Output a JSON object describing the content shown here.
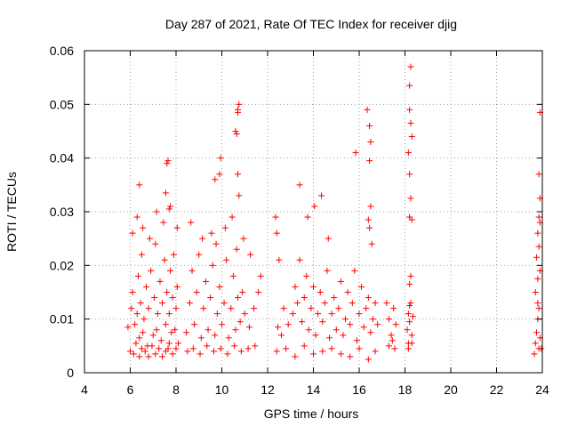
{
  "chart_data": {
    "type": "scatter",
    "title": "Day 287 of 2021, Rate Of TEC Index for receiver djig",
    "xlabel": "GPS time / hours",
    "ylabel": "ROTI / TECUs",
    "xlim": [
      4,
      24
    ],
    "ylim": [
      0,
      0.06
    ],
    "xticks": [
      "4",
      "6",
      "8",
      "10",
      "12",
      "14",
      "16",
      "18",
      "20",
      "22",
      "24"
    ],
    "yticks": [
      "0",
      "0.01",
      "0.02",
      "0.03",
      "0.04",
      "0.05",
      "0.06"
    ],
    "grid": true,
    "marker": "plus",
    "color": "#ff0000",
    "series": [
      {
        "name": "ROTI",
        "x": [
          5.9,
          6.05,
          6.1,
          6.2,
          6.3,
          6.35,
          6.4,
          6.45,
          6.5,
          6.55,
          6.6,
          6.7,
          6.75,
          6.8,
          6.9,
          7.0,
          7.05,
          7.1,
          7.15,
          7.2,
          7.3,
          7.35,
          7.4,
          7.5,
          7.55,
          7.6,
          7.65,
          7.7,
          7.75,
          7.8,
          7.85,
          7.9,
          7.95,
          8.0,
          8.05,
          8.1,
          6.0,
          6.15,
          6.25,
          6.4,
          6.5,
          6.65,
          6.8,
          6.95,
          7.1,
          7.25,
          7.4,
          7.55,
          7.7,
          7.85,
          8.0,
          6.1,
          6.3,
          6.55,
          6.85,
          7.15,
          7.45,
          7.75,
          8.05,
          6.4,
          7.6,
          7.65,
          7.55,
          7.7,
          8.45,
          8.6,
          8.7,
          8.8,
          8.9,
          9.0,
          9.1,
          9.2,
          9.3,
          9.4,
          9.5,
          9.6,
          9.7,
          9.8,
          9.9,
          10.0,
          10.1,
          10.2,
          10.3,
          10.4,
          10.5,
          10.6,
          10.7,
          10.8,
          10.9,
          11.0,
          11.2,
          11.4,
          11.6,
          11.7,
          8.5,
          8.75,
          9.05,
          9.35,
          9.65,
          9.95,
          10.25,
          10.55,
          10.85,
          11.15,
          11.45,
          8.65,
          9.15,
          9.55,
          9.75,
          10.15,
          10.45,
          10.65,
          10.95,
          11.25,
          9.7,
          9.9,
          9.95,
          10.6,
          10.65,
          10.7,
          10.75,
          10.7,
          10.75,
          10.7,
          12.35,
          12.4,
          12.45,
          12.5,
          12.6,
          12.7,
          12.9,
          13.1,
          13.2,
          13.3,
          13.4,
          13.5,
          13.6,
          13.7,
          13.8,
          13.9,
          14.0,
          14.1,
          14.2,
          14.3,
          14.4,
          14.5,
          14.6,
          14.7,
          14.8,
          14.9,
          15.0,
          15.1,
          15.2,
          15.3,
          15.4,
          15.5,
          15.6,
          15.7,
          15.8,
          15.9,
          16.0,
          16.1,
          16.2,
          16.3,
          16.4,
          16.5,
          16.6,
          16.7,
          16.8,
          12.4,
          12.8,
          13.2,
          13.6,
          14.0,
          14.4,
          14.8,
          15.2,
          15.6,
          16.0,
          16.4,
          16.7,
          13.4,
          13.75,
          14.05,
          14.35,
          14.65,
          15.85,
          16.35,
          16.45,
          16.5,
          16.45,
          16.5,
          16.4,
          16.45,
          16.55,
          17.2,
          17.3,
          17.4,
          17.5,
          17.6,
          17.3,
          17.45,
          17.55,
          18.1,
          18.15,
          18.2,
          18.25,
          18.3,
          18.35,
          18.2,
          18.25,
          18.15,
          18.3,
          18.2,
          18.25,
          18.2,
          18.15,
          18.3,
          18.25,
          18.2,
          18.2,
          18.25,
          18.3,
          18.2,
          18.15,
          23.65,
          23.7,
          23.75,
          23.8,
          23.85,
          23.9,
          23.95,
          23.7,
          23.8,
          23.9,
          23.75,
          23.85,
          23.8,
          23.9,
          23.85,
          23.9,
          23.85,
          23.9,
          23.8,
          23.85
        ],
        "y": [
          0.0085,
          0.012,
          0.015,
          0.009,
          0.011,
          0.018,
          0.0065,
          0.013,
          0.022,
          0.0075,
          0.01,
          0.016,
          0.005,
          0.012,
          0.019,
          0.007,
          0.014,
          0.024,
          0.008,
          0.011,
          0.017,
          0.006,
          0.013,
          0.021,
          0.009,
          0.015,
          0.0045,
          0.011,
          0.019,
          0.0075,
          0.014,
          0.022,
          0.008,
          0.012,
          0.016,
          0.0055,
          0.004,
          0.0035,
          0.0055,
          0.003,
          0.0045,
          0.004,
          0.003,
          0.005,
          0.0035,
          0.0045,
          0.003,
          0.004,
          0.0055,
          0.0035,
          0.0045,
          0.026,
          0.029,
          0.027,
          0.025,
          0.03,
          0.028,
          0.031,
          0.027,
          0.035,
          0.039,
          0.0395,
          0.0335,
          0.0305,
          0.0075,
          0.013,
          0.019,
          0.009,
          0.015,
          0.022,
          0.0065,
          0.012,
          0.017,
          0.008,
          0.014,
          0.02,
          0.007,
          0.011,
          0.016,
          0.009,
          0.013,
          0.021,
          0.0065,
          0.012,
          0.018,
          0.008,
          0.014,
          0.0095,
          0.015,
          0.011,
          0.0085,
          0.012,
          0.015,
          0.018,
          0.004,
          0.0045,
          0.0035,
          0.005,
          0.004,
          0.0045,
          0.0035,
          0.005,
          0.004,
          0.0045,
          0.005,
          0.028,
          0.025,
          0.026,
          0.024,
          0.027,
          0.029,
          0.023,
          0.025,
          0.022,
          0.036,
          0.037,
          0.04,
          0.045,
          0.0445,
          0.037,
          0.05,
          0.049,
          0.033,
          0.0485,
          0.029,
          0.026,
          0.0085,
          0.021,
          0.007,
          0.012,
          0.009,
          0.011,
          0.016,
          0.013,
          0.021,
          0.0095,
          0.014,
          0.018,
          0.008,
          0.012,
          0.016,
          0.007,
          0.011,
          0.015,
          0.0095,
          0.013,
          0.019,
          0.0065,
          0.011,
          0.014,
          0.008,
          0.012,
          0.017,
          0.007,
          0.01,
          0.015,
          0.009,
          0.013,
          0.019,
          0.006,
          0.011,
          0.016,
          0.0085,
          0.012,
          0.014,
          0.0075,
          0.01,
          0.013,
          0.009,
          0.004,
          0.0045,
          0.003,
          0.005,
          0.0035,
          0.004,
          0.0045,
          0.0035,
          0.003,
          0.0045,
          0.0025,
          0.004,
          0.035,
          0.029,
          0.031,
          0.033,
          0.025,
          0.041,
          0.049,
          0.046,
          0.043,
          0.0395,
          0.031,
          0.0285,
          0.027,
          0.024,
          0.013,
          0.01,
          0.007,
          0.012,
          0.009,
          0.005,
          0.006,
          0.0045,
          0.008,
          0.011,
          0.0095,
          0.013,
          0.007,
          0.0105,
          0.0165,
          0.018,
          0.0045,
          0.0055,
          0.029,
          0.0325,
          0.037,
          0.041,
          0.044,
          0.0465,
          0.049,
          0.0535,
          0.057,
          0.0285,
          0.0125,
          0.0055,
          0.0035,
          0.0055,
          0.0075,
          0.01,
          0.012,
          0.0065,
          0.0045,
          0.015,
          0.0175,
          0.019,
          0.0215,
          0.0235,
          0.026,
          0.028,
          0.029,
          0.0325,
          0.037,
          0.0485,
          0.013,
          0.0045
        ]
      }
    ]
  }
}
